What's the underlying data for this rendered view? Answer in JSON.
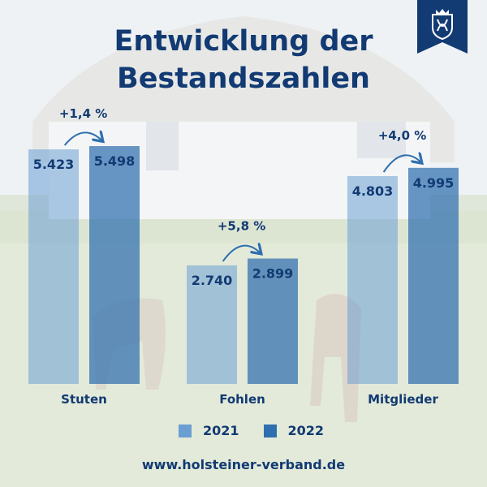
{
  "title_line1": "Entwicklung der",
  "title_line2": "Bestandszahlen",
  "website": "www.holsteiner-verband.de",
  "colors": {
    "brand": "#123a73",
    "series_2021": "#6b9fd3",
    "series_2022": "#2f6faf"
  },
  "logo": {
    "icon": "holsteiner-crest-icon"
  },
  "chart_data": {
    "type": "bar",
    "title": "Entwicklung der Bestandszahlen",
    "categories": [
      "Stuten",
      "Fohlen",
      "Mitglieder"
    ],
    "series": [
      {
        "name": "2021",
        "values": [
          5423,
          2740,
          4803
        ],
        "labels": [
          "5.423",
          "2.740",
          "4.803"
        ]
      },
      {
        "name": "2022",
        "values": [
          5498,
          2899,
          4995
        ],
        "labels": [
          "5.498",
          "2.899",
          "4.995"
        ]
      }
    ],
    "changes": [
      "+1,4 %",
      "+5,8 %",
      "+4,0 %"
    ],
    "legend": "bottom",
    "grid": false,
    "ylim": [
      0,
      5498
    ]
  }
}
